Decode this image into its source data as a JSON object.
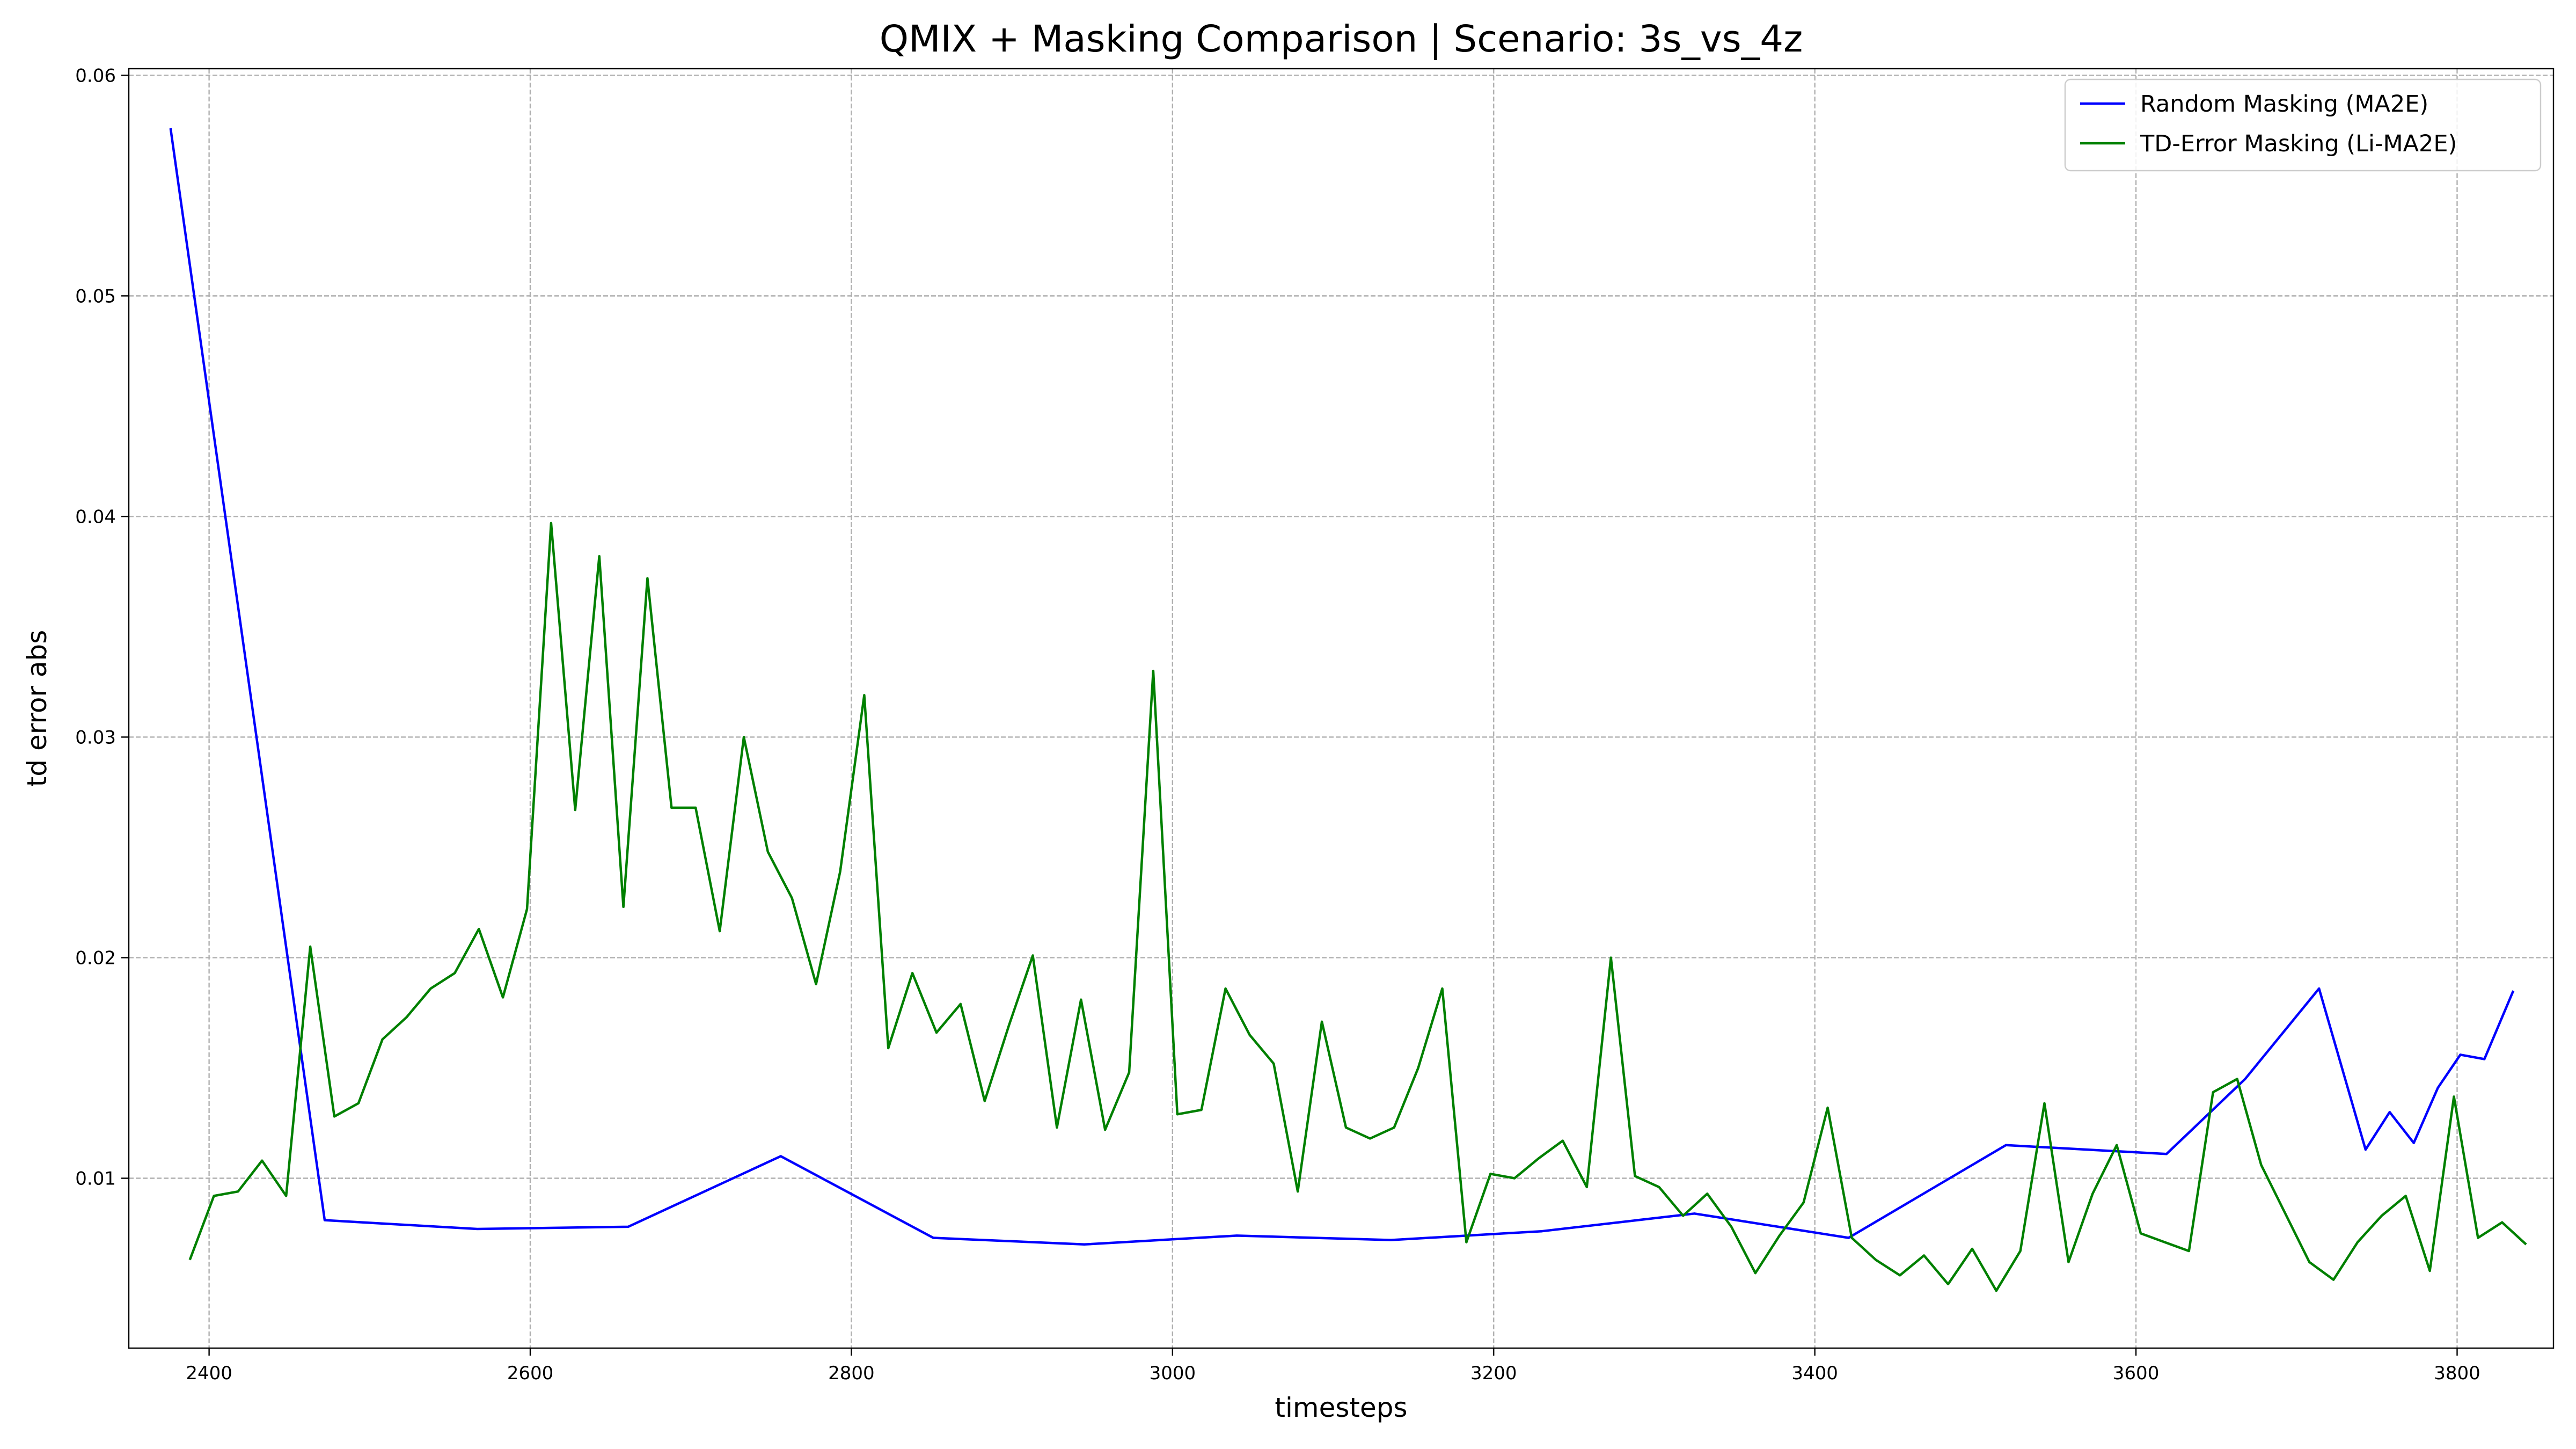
{
  "chart_data": {
    "type": "line",
    "title": "QMIX + Masking Comparison | Scenario: 3s_vs_4z",
    "xlabel": "timesteps",
    "ylabel": "td error abs",
    "xlim": [
      2350,
      3860
    ],
    "ylim": [
      0.0023,
      0.0603
    ],
    "xticks": [
      2400,
      2600,
      2800,
      3000,
      3200,
      3400,
      3600,
      3800
    ],
    "xtick_labels": [
      "2400",
      "2600",
      "2800",
      "3000",
      "3200",
      "3400",
      "3600",
      "3800"
    ],
    "yticks": [
      0.01,
      0.02,
      0.03,
      0.04,
      0.05,
      0.06
    ],
    "ytick_labels": [
      "0.01",
      "0.02",
      "0.03",
      "0.04",
      "0.05",
      "0.06"
    ],
    "grid": true,
    "legend_position": "top-right",
    "series": [
      {
        "name": "Random Masking (MA2E)",
        "color": "#0000ff",
        "points": [
          [
            2376,
            0.0576
          ],
          [
            2472,
            0.0081
          ],
          [
            2567,
            0.0077
          ],
          [
            2661,
            0.0078
          ],
          [
            2756,
            0.011
          ],
          [
            2851,
            0.0073
          ],
          [
            2945,
            0.007
          ],
          [
            3040,
            0.0074
          ],
          [
            3136,
            0.0072
          ],
          [
            3230,
            0.0076
          ],
          [
            3325,
            0.0084
          ],
          [
            3421,
            0.0073
          ],
          [
            3519,
            0.0115
          ],
          [
            3619,
            0.0111
          ],
          [
            3668,
            0.0145
          ],
          [
            3714,
            0.0186
          ],
          [
            3743,
            0.0113
          ],
          [
            3758,
            0.013
          ],
          [
            3773,
            0.0116
          ],
          [
            3788,
            0.0141
          ],
          [
            3802,
            0.0156
          ],
          [
            3817,
            0.0154
          ],
          [
            3835,
            0.0185
          ]
        ]
      },
      {
        "name": "TD-Error Masking (Li-MA2E)",
        "color": "#008000",
        "points": [
          [
            2388,
            0.0063
          ],
          [
            2403,
            0.0092
          ],
          [
            2418,
            0.0094
          ],
          [
            2433,
            0.0108
          ],
          [
            2448,
            0.0092
          ],
          [
            2463,
            0.0205
          ],
          [
            2478,
            0.0128
          ],
          [
            2493,
            0.0134
          ],
          [
            2508,
            0.0163
          ],
          [
            2523,
            0.0173
          ],
          [
            2538,
            0.0186
          ],
          [
            2553,
            0.0193
          ],
          [
            2568,
            0.0213
          ],
          [
            2583,
            0.0182
          ],
          [
            2598,
            0.0222
          ],
          [
            2613,
            0.0397
          ],
          [
            2628,
            0.0267
          ],
          [
            2643,
            0.0382
          ],
          [
            2658,
            0.0223
          ],
          [
            2673,
            0.0372
          ],
          [
            2688,
            0.0268
          ],
          [
            2703,
            0.0268
          ],
          [
            2718,
            0.0212
          ],
          [
            2733,
            0.03
          ],
          [
            2748,
            0.0248
          ],
          [
            2763,
            0.0227
          ],
          [
            2778,
            0.0188
          ],
          [
            2793,
            0.0239
          ],
          [
            2808,
            0.0319
          ],
          [
            2823,
            0.0159
          ],
          [
            2838,
            0.0193
          ],
          [
            2853,
            0.0166
          ],
          [
            2868,
            0.0179
          ],
          [
            2883,
            0.0135
          ],
          [
            2898,
            0.0169
          ],
          [
            2913,
            0.0201
          ],
          [
            2928,
            0.0123
          ],
          [
            2943,
            0.0181
          ],
          [
            2958,
            0.0122
          ],
          [
            2973,
            0.0148
          ],
          [
            2988,
            0.033
          ],
          [
            3003,
            0.0129
          ],
          [
            3018,
            0.0131
          ],
          [
            3033,
            0.0186
          ],
          [
            3048,
            0.0165
          ],
          [
            3063,
            0.0152
          ],
          [
            3078,
            0.0094
          ],
          [
            3093,
            0.0171
          ],
          [
            3108,
            0.0123
          ],
          [
            3123,
            0.0118
          ],
          [
            3138,
            0.0123
          ],
          [
            3153,
            0.015
          ],
          [
            3168,
            0.0186
          ],
          [
            3183,
            0.0071
          ],
          [
            3198,
            0.0102
          ],
          [
            3213,
            0.01
          ],
          [
            3228,
            0.0109
          ],
          [
            3243,
            0.0117
          ],
          [
            3258,
            0.0096
          ],
          [
            3273,
            0.02
          ],
          [
            3288,
            0.0101
          ],
          [
            3303,
            0.0096
          ],
          [
            3318,
            0.0083
          ],
          [
            3333,
            0.0093
          ],
          [
            3348,
            0.0078
          ],
          [
            3363,
            0.0057
          ],
          [
            3378,
            0.0074
          ],
          [
            3393,
            0.0089
          ],
          [
            3408,
            0.0132
          ],
          [
            3423,
            0.0073
          ],
          [
            3438,
            0.0063
          ],
          [
            3453,
            0.0056
          ],
          [
            3468,
            0.0065
          ],
          [
            3483,
            0.0052
          ],
          [
            3498,
            0.0068
          ],
          [
            3513,
            0.0049
          ],
          [
            3528,
            0.0067
          ],
          [
            3543,
            0.0134
          ],
          [
            3558,
            0.0062
          ],
          [
            3573,
            0.0093
          ],
          [
            3588,
            0.0115
          ],
          [
            3603,
            0.0075
          ],
          [
            3618,
            0.0071
          ],
          [
            3633,
            0.0067
          ],
          [
            3648,
            0.0139
          ],
          [
            3663,
            0.0145
          ],
          [
            3678,
            0.0106
          ],
          [
            3693,
            0.0084
          ],
          [
            3708,
            0.0062
          ],
          [
            3723,
            0.0054
          ],
          [
            3738,
            0.0071
          ],
          [
            3753,
            0.0083
          ],
          [
            3768,
            0.0092
          ],
          [
            3783,
            0.0058
          ],
          [
            3798,
            0.0137
          ],
          [
            3813,
            0.0073
          ],
          [
            3828,
            0.008
          ],
          [
            3843,
            0.007
          ]
        ]
      }
    ]
  }
}
